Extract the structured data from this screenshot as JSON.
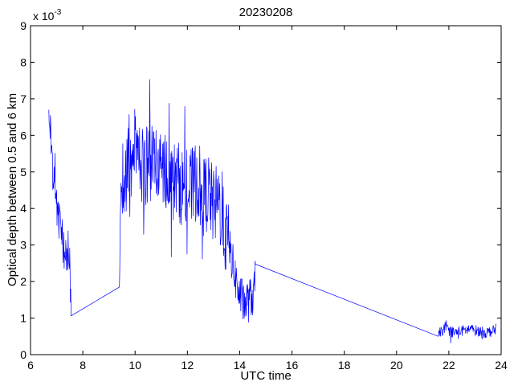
{
  "chart_data": {
    "type": "line",
    "title": "20230208",
    "xlabel": "UTC time",
    "ylabel": "Optical depth between 0.5 and 6 km",
    "y_multiplier_label": "x 10",
    "y_multiplier_exponent": "-3",
    "xlim": [
      6,
      24
    ],
    "ylim": [
      0,
      9
    ],
    "x_ticks": [
      6,
      8,
      10,
      12,
      14,
      16,
      18,
      20,
      22,
      24
    ],
    "y_ticks": [
      0,
      1,
      2,
      3,
      4,
      5,
      6,
      7,
      8,
      9
    ],
    "grid": false,
    "legend": "none",
    "line_color": "#0000ff",
    "series": [
      {
        "x": [
          6.7,
          6.75,
          6.8,
          6.85,
          6.9,
          6.95,
          7.0,
          7.05,
          7.1,
          7.15,
          7.2,
          7.25,
          7.3,
          7.35,
          7.4,
          7.45,
          7.5,
          7.55,
          9.4,
          9.45,
          9.5,
          9.6,
          9.7,
          9.8,
          9.85,
          9.9,
          10.0,
          10.2,
          10.4,
          10.6,
          10.8,
          11.0,
          11.2,
          11.4,
          11.6,
          11.8,
          12.0,
          12.2,
          12.4,
          12.6,
          12.8,
          13.0,
          13.2,
          13.4,
          13.6,
          13.8,
          14.0,
          14.2,
          14.4,
          14.55,
          14.6,
          21.6,
          21.7,
          21.9,
          22.2,
          22.5,
          22.8,
          23.1,
          23.4,
          23.7,
          23.8
        ],
        "y": [
          6.7,
          6.2,
          5.4,
          4.9,
          4.6,
          4.4,
          4.1,
          3.8,
          3.6,
          3.4,
          3.2,
          3.0,
          2.9,
          2.8,
          2.8,
          2.9,
          2.6,
          1.0,
          1.85,
          4.4,
          4.6,
          5.0,
          5.3,
          5.7,
          6.2,
          6.0,
          5.6,
          5.3,
          5.1,
          5.5,
          5.2,
          4.9,
          5.1,
          4.7,
          4.8,
          4.6,
          4.4,
          4.6,
          4.8,
          4.3,
          4.5,
          4.0,
          4.2,
          3.4,
          3.0,
          2.2,
          1.6,
          1.4,
          1.5,
          1.7,
          2.35,
          0.5,
          0.65,
          0.7,
          0.6,
          0.65,
          0.7,
          0.65,
          0.6,
          0.65,
          0.7
        ]
      }
    ]
  }
}
